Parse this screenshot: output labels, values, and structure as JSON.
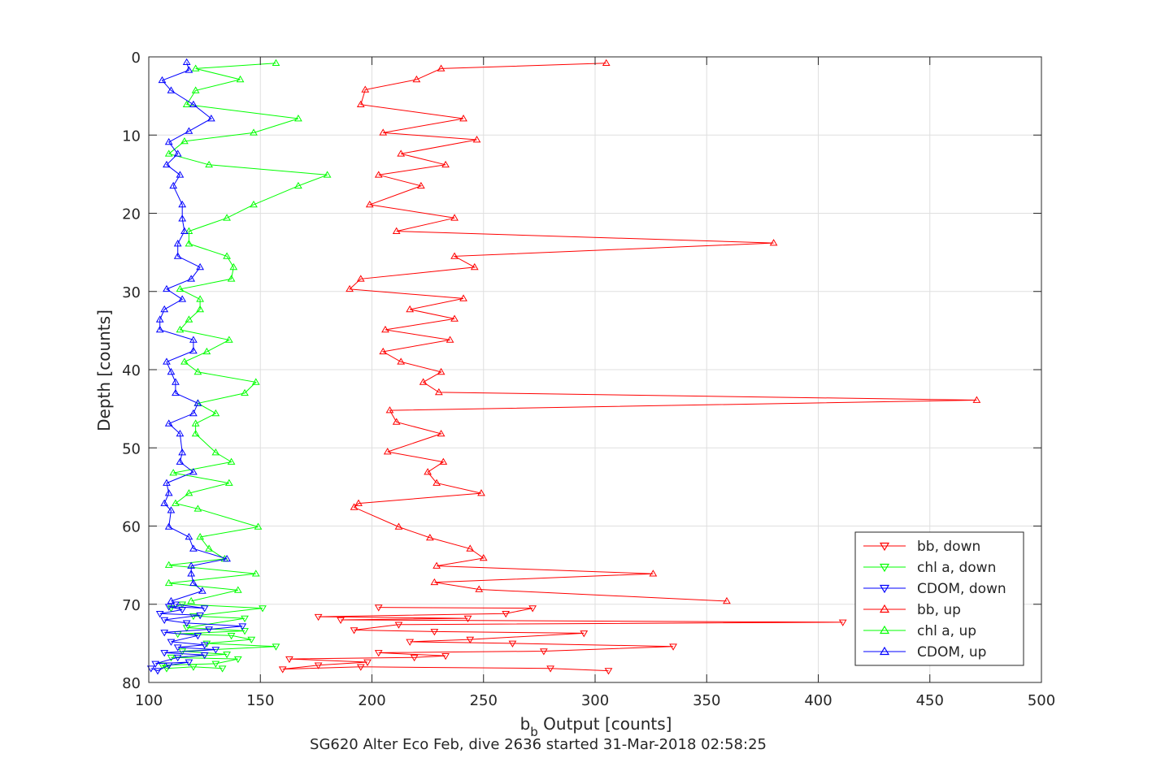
{
  "chart_data": {
    "type": "line",
    "title": "",
    "xlabel": "b",
    "xlabel_sub": "b",
    "xlabel_rest": " Output [counts]",
    "ylabel": "Depth [counts]",
    "caption": "SG620 Alter Eco Feb, dive 2636 started 31-Mar-2018 02:58:25",
    "xlim": [
      100,
      500
    ],
    "ylim": [
      0,
      80
    ],
    "y_reversed": true,
    "grid": true,
    "legend_position": "bottom-right",
    "xticks": [
      100,
      150,
      200,
      250,
      300,
      350,
      400,
      450,
      500
    ],
    "yticks": [
      0,
      10,
      20,
      30,
      40,
      50,
      60,
      70,
      80
    ],
    "series": [
      {
        "name": "bb, down",
        "color": "#ff0000",
        "marker": "triangle-down",
        "points": [
          [
            306,
            78.5
          ],
          [
            280,
            78.2
          ],
          [
            195,
            78.0
          ],
          [
            160,
            78.3
          ],
          [
            176,
            77.8
          ],
          [
            198,
            77.4
          ],
          [
            163,
            77.0
          ],
          [
            219,
            76.8
          ],
          [
            233,
            76.6
          ],
          [
            203,
            76.2
          ],
          [
            277,
            76.0
          ],
          [
            335,
            75.4
          ],
          [
            263,
            75.0
          ],
          [
            217,
            74.8
          ],
          [
            244,
            74.5
          ],
          [
            295,
            73.7
          ],
          [
            228,
            73.5
          ],
          [
            192,
            73.3
          ],
          [
            212,
            72.6
          ],
          [
            411,
            72.3
          ],
          [
            186,
            72.0
          ],
          [
            243,
            71.8
          ],
          [
            176,
            71.6
          ],
          [
            260,
            71.2
          ],
          [
            272,
            70.5
          ],
          [
            203,
            70.4
          ]
        ]
      },
      {
        "name": "chl a, down",
        "color": "#00ff00",
        "marker": "triangle-down",
        "points": [
          [
            133,
            78.2
          ],
          [
            120,
            78.0
          ],
          [
            108,
            78.2
          ],
          [
            106,
            77.8
          ],
          [
            130,
            77.6
          ],
          [
            140,
            77.0
          ],
          [
            110,
            76.8
          ],
          [
            135,
            76.4
          ],
          [
            115,
            76.0
          ],
          [
            157,
            75.4
          ],
          [
            126,
            75.0
          ],
          [
            146,
            74.5
          ],
          [
            137,
            74.0
          ],
          [
            113,
            73.8
          ],
          [
            143,
            73.4
          ],
          [
            117,
            73.0
          ],
          [
            143,
            71.8
          ],
          [
            120,
            71.5
          ],
          [
            151,
            70.5
          ],
          [
            115,
            70.0
          ],
          [
            110,
            70.5
          ]
        ]
      },
      {
        "name": "CDOM, down",
        "color": "#0000ff",
        "marker": "triangle-down",
        "points": [
          [
            101,
            78.2
          ],
          [
            104,
            78.5
          ],
          [
            109,
            77.8
          ],
          [
            118,
            77.4
          ],
          [
            103,
            77.6
          ],
          [
            113,
            76.8
          ],
          [
            125,
            76.5
          ],
          [
            107,
            76.2
          ],
          [
            130,
            75.8
          ],
          [
            113,
            75.5
          ],
          [
            125,
            75.2
          ],
          [
            110,
            74.8
          ],
          [
            122,
            74.0
          ],
          [
            107,
            73.6
          ],
          [
            127,
            73.2
          ],
          [
            142,
            72.8
          ],
          [
            117,
            72.4
          ],
          [
            107,
            72.0
          ],
          [
            123,
            71.4
          ],
          [
            105,
            71.2
          ],
          [
            115,
            70.7
          ],
          [
            109,
            70.3
          ],
          [
            125,
            70.5
          ],
          [
            112,
            70.0
          ]
        ]
      },
      {
        "name": "bb, up",
        "color": "#ff0000",
        "marker": "triangle-up",
        "points": [
          [
            305,
            0.8
          ],
          [
            231,
            1.5
          ],
          [
            220,
            2.9
          ],
          [
            197,
            4.2
          ],
          [
            195,
            6.1
          ],
          [
            241,
            7.9
          ],
          [
            205,
            9.7
          ],
          [
            247,
            10.6
          ],
          [
            213,
            12.4
          ],
          [
            233,
            13.8
          ],
          [
            203,
            15.1
          ],
          [
            222,
            16.5
          ],
          [
            199,
            18.9
          ],
          [
            237,
            20.6
          ],
          [
            211,
            22.3
          ],
          [
            380,
            23.8
          ],
          [
            237,
            25.5
          ],
          [
            246,
            26.9
          ],
          [
            195,
            28.4
          ],
          [
            190,
            29.7
          ],
          [
            241,
            30.9
          ],
          [
            217,
            32.3
          ],
          [
            237,
            33.5
          ],
          [
            206,
            34.9
          ],
          [
            235,
            36.2
          ],
          [
            205,
            37.7
          ],
          [
            213,
            39.0
          ],
          [
            231,
            40.3
          ],
          [
            223,
            41.6
          ],
          [
            230,
            42.9
          ],
          [
            471,
            43.9
          ],
          [
            208,
            45.2
          ],
          [
            211,
            46.7
          ],
          [
            231,
            48.2
          ],
          [
            207,
            50.5
          ],
          [
            232,
            51.8
          ],
          [
            225,
            53.1
          ],
          [
            229,
            54.5
          ],
          [
            249,
            55.8
          ],
          [
            194,
            57.1
          ],
          [
            192,
            57.6
          ],
          [
            212,
            60.1
          ],
          [
            226,
            61.5
          ],
          [
            244,
            62.9
          ],
          [
            250,
            64.1
          ],
          [
            229,
            65.1
          ],
          [
            326,
            66.1
          ],
          [
            228,
            67.2
          ],
          [
            248,
            68.1
          ],
          [
            359,
            69.6
          ]
        ]
      },
      {
        "name": "chl a, up",
        "color": "#00ff00",
        "marker": "triangle-up",
        "points": [
          [
            157,
            0.8
          ],
          [
            121,
            1.5
          ],
          [
            141,
            2.9
          ],
          [
            121,
            4.3
          ],
          [
            117,
            6.1
          ],
          [
            167,
            7.9
          ],
          [
            147,
            9.7
          ],
          [
            116,
            10.8
          ],
          [
            109,
            12.4
          ],
          [
            127,
            13.8
          ],
          [
            180,
            15.1
          ],
          [
            167,
            16.5
          ],
          [
            147,
            18.9
          ],
          [
            135,
            20.6
          ],
          [
            118,
            22.3
          ],
          [
            118,
            23.9
          ],
          [
            135,
            25.5
          ],
          [
            138,
            26.9
          ],
          [
            137,
            28.4
          ],
          [
            114,
            29.7
          ],
          [
            123,
            31.0
          ],
          [
            123,
            32.3
          ],
          [
            118,
            33.6
          ],
          [
            114,
            34.9
          ],
          [
            136,
            36.2
          ],
          [
            126,
            37.7
          ],
          [
            116,
            39.0
          ],
          [
            122,
            40.3
          ],
          [
            148,
            41.6
          ],
          [
            143,
            43.0
          ],
          [
            122,
            44.3
          ],
          [
            130,
            45.6
          ],
          [
            121,
            46.9
          ],
          [
            121,
            48.2
          ],
          [
            130,
            50.6
          ],
          [
            137,
            51.8
          ],
          [
            111,
            53.2
          ],
          [
            136,
            54.5
          ],
          [
            118,
            55.8
          ],
          [
            112,
            57.1
          ],
          [
            122,
            57.8
          ],
          [
            149,
            60.1
          ],
          [
            123,
            61.4
          ],
          [
            127,
            62.9
          ],
          [
            134,
            64.2
          ],
          [
            109,
            65.0
          ],
          [
            148,
            66.1
          ],
          [
            109,
            67.3
          ],
          [
            140,
            68.2
          ],
          [
            119,
            69.6
          ]
        ]
      },
      {
        "name": "CDOM, up",
        "color": "#0000ff",
        "marker": "triangle-up",
        "points": [
          [
            117,
            0.7
          ],
          [
            118,
            1.7
          ],
          [
            106,
            3.0
          ],
          [
            110,
            4.3
          ],
          [
            120,
            6.1
          ],
          [
            128,
            7.9
          ],
          [
            118,
            9.5
          ],
          [
            109,
            10.9
          ],
          [
            113,
            12.4
          ],
          [
            108,
            13.8
          ],
          [
            114,
            15.1
          ],
          [
            111,
            16.5
          ],
          [
            115,
            18.9
          ],
          [
            115,
            20.7
          ],
          [
            116,
            22.3
          ],
          [
            113,
            23.9
          ],
          [
            113,
            25.5
          ],
          [
            123,
            26.9
          ],
          [
            119,
            28.4
          ],
          [
            108,
            29.7
          ],
          [
            115,
            31.0
          ],
          [
            107,
            32.3
          ],
          [
            105,
            33.6
          ],
          [
            105,
            34.9
          ],
          [
            120,
            36.2
          ],
          [
            120,
            37.6
          ],
          [
            108,
            39.0
          ],
          [
            110,
            40.3
          ],
          [
            112,
            41.6
          ],
          [
            112,
            43.0
          ],
          [
            122,
            44.3
          ],
          [
            120,
            45.6
          ],
          [
            109,
            46.9
          ],
          [
            114,
            48.2
          ],
          [
            115,
            50.6
          ],
          [
            114,
            51.8
          ],
          [
            120,
            53.1
          ],
          [
            108,
            54.5
          ],
          [
            109,
            55.8
          ],
          [
            107,
            57.1
          ],
          [
            110,
            58.0
          ],
          [
            109,
            60.1
          ],
          [
            118,
            61.4
          ],
          [
            120,
            62.9
          ],
          [
            135,
            64.2
          ],
          [
            119,
            65.1
          ],
          [
            119,
            66.1
          ],
          [
            120,
            67.3
          ],
          [
            124,
            68.3
          ],
          [
            110,
            69.6
          ]
        ]
      }
    ]
  }
}
